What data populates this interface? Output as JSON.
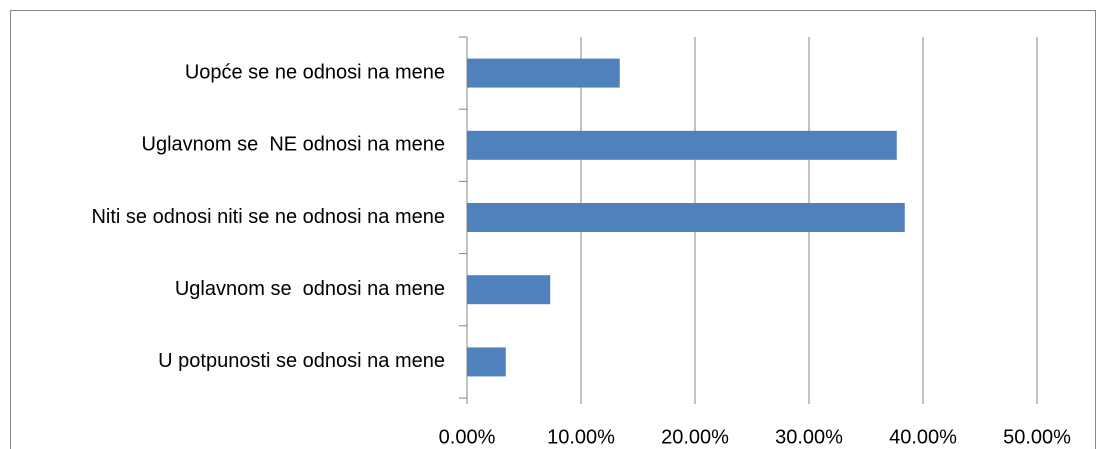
{
  "chart_data": {
    "type": "bar",
    "orientation": "horizontal",
    "categories": [
      "Uopće se ne odnosi na mene",
      "Uglavnom se  NE odnosi na mene",
      "Niti se odnosi niti se ne odnosi na mene",
      "Uglavnom se  odnosi na mene",
      "U potpunosti se odnosi na mene"
    ],
    "values": [
      13.4,
      37.7,
      38.4,
      7.3,
      3.4
    ],
    "color": "#4f81bd",
    "xlim": [
      0,
      50
    ],
    "xticks": [
      {
        "value": 0,
        "label": "0.00%"
      },
      {
        "value": 10,
        "label": "10.00%"
      },
      {
        "value": 20,
        "label": "20.00%"
      },
      {
        "value": 30,
        "label": "30.00%"
      },
      {
        "value": 40,
        "label": "40.00%"
      },
      {
        "value": 50,
        "label": "50.00%"
      }
    ],
    "grid": true
  }
}
